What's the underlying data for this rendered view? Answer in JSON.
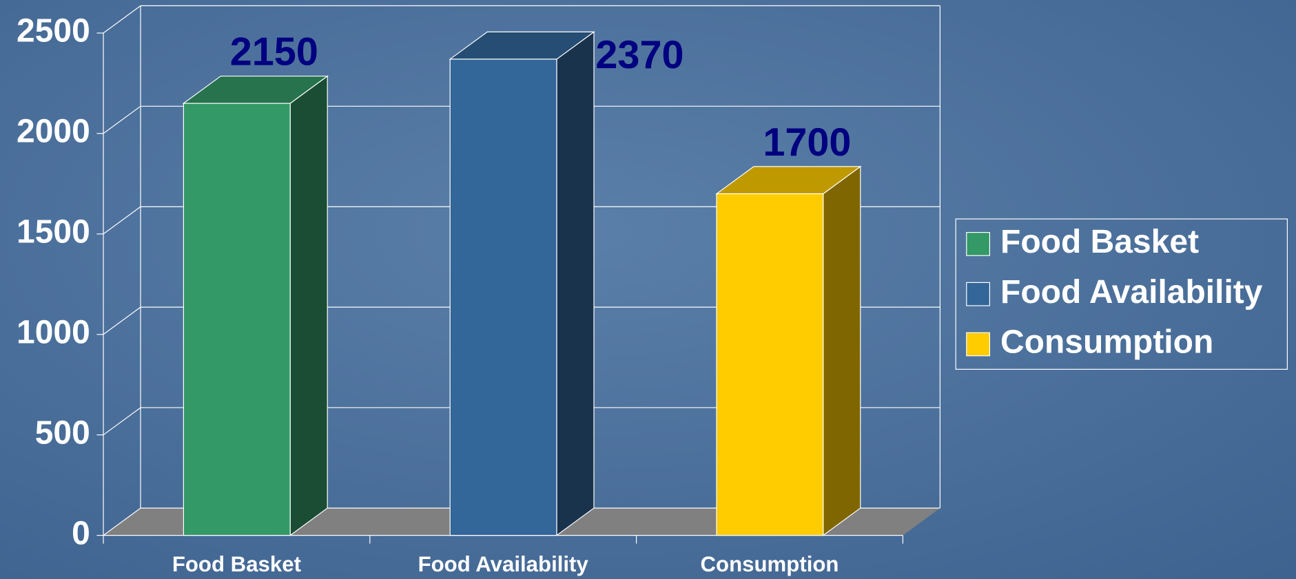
{
  "chart_data": {
    "type": "bar3d",
    "categories": [
      "Food Basket",
      "Food Availability",
      "Consumption"
    ],
    "values": [
      2150,
      2370,
      1700
    ],
    "colors": [
      "#339966",
      "#336699",
      "#ffcc00"
    ],
    "ylim": [
      0,
      2500
    ],
    "yticks": [
      0,
      500,
      1000,
      1500,
      2000,
      2500
    ],
    "grid": true,
    "legend": "right"
  }
}
